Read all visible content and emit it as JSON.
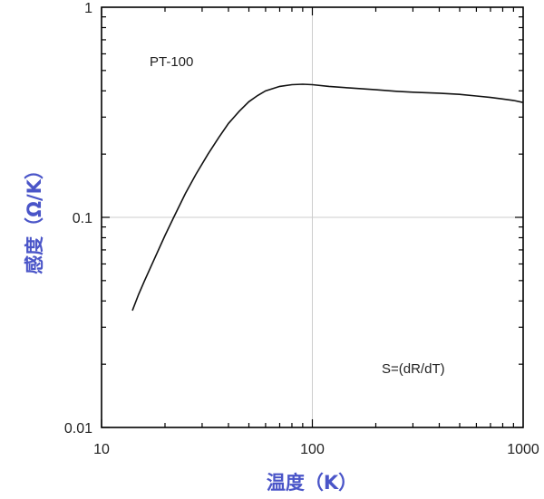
{
  "chart_data": {
    "type": "line",
    "x_scale": "log",
    "y_scale": "log",
    "xlim": [
      10,
      1000
    ],
    "ylim": [
      0.01,
      1
    ],
    "xlabel": "温度（K）",
    "ylabel": "感度（Ω/K）",
    "x_ticks": [
      "10",
      "100",
      "1000"
    ],
    "y_ticks": [
      "0.01",
      "0.1",
      "1"
    ],
    "grid": "major",
    "annotations": [
      "PT-100",
      "S=(dR/dT)"
    ],
    "series": [
      {
        "x": [
          14,
          15,
          16,
          18,
          20,
          22,
          25,
          28,
          32,
          36,
          40,
          45,
          50,
          55,
          60,
          70,
          80,
          90,
          100,
          120,
          150,
          200,
          250,
          300,
          400,
          500,
          600,
          700,
          800,
          900,
          1000
        ],
        "y": [
          0.036,
          0.043,
          0.05,
          0.065,
          0.082,
          0.1,
          0.13,
          0.16,
          0.2,
          0.24,
          0.28,
          0.32,
          0.355,
          0.38,
          0.4,
          0.42,
          0.428,
          0.43,
          0.428,
          0.42,
          0.413,
          0.405,
          0.398,
          0.394,
          0.39,
          0.385,
          0.378,
          0.372,
          0.366,
          0.36,
          0.352
        ]
      }
    ],
    "colors": {
      "line": "#111111",
      "grid": "#cccccc",
      "axis_title": "#4a55c8"
    }
  }
}
